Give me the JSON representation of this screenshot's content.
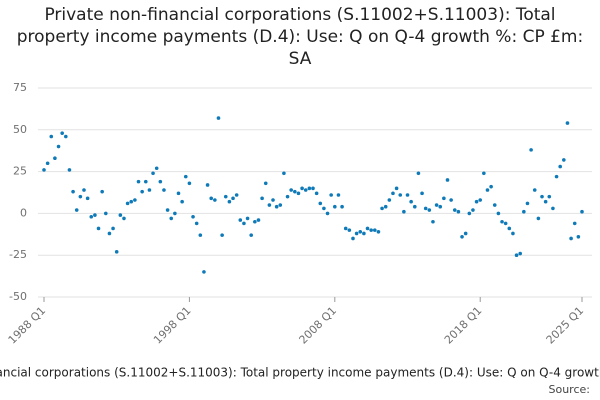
{
  "chart_data": {
    "type": "line",
    "title": "Private non-financial corporations (S.11002+S.11003): Total property income payments (D.4): Use: Q on Q-4 growth %: CP £m: SA",
    "source": "Source:",
    "categories": [
      "1988 Q1",
      null,
      null,
      null,
      null,
      null,
      null,
      null,
      null,
      null,
      null,
      null,
      null,
      null,
      null,
      null,
      null,
      null,
      null,
      null,
      null,
      null,
      null,
      null,
      null,
      null,
      null,
      null,
      null,
      null,
      null,
      null,
      null,
      null,
      null,
      null,
      null,
      null,
      null,
      null,
      "1998 Q1",
      null,
      null,
      null,
      null,
      null,
      null,
      null,
      null,
      null,
      null,
      null,
      null,
      null,
      null,
      null,
      null,
      null,
      null,
      null,
      null,
      null,
      null,
      null,
      null,
      null,
      null,
      null,
      null,
      null,
      null,
      null,
      null,
      null,
      null,
      null,
      null,
      null,
      null,
      null,
      "2008 Q1",
      null,
      null,
      null,
      null,
      null,
      null,
      null,
      null,
      null,
      null,
      null,
      null,
      null,
      null,
      null,
      null,
      null,
      null,
      null,
      null,
      null,
      null,
      null,
      null,
      null,
      null,
      null,
      null,
      null,
      null,
      null,
      null,
      null,
      null,
      null,
      null,
      null,
      null,
      null,
      "2018 Q1",
      null,
      null,
      null,
      null,
      null,
      null,
      null,
      null,
      null,
      null,
      null,
      null,
      null,
      null,
      null,
      null,
      null,
      null,
      null,
      null,
      null,
      null,
      null,
      null,
      null,
      null,
      null,
      "2025 Q1"
    ],
    "series": [
      {
        "name": "Private non-financial corporations (S.11002+S.11003): Total property income payments (D.4): Use: Q on Q-4 growth %: CP £m: SA",
        "color": "#0f7ab8",
        "values": [
          26,
          30,
          46,
          33,
          40,
          48,
          46,
          26,
          13,
          2,
          10,
          14,
          9,
          -2,
          -1,
          -9,
          13,
          0,
          -12,
          -9,
          -23,
          -1,
          -3,
          6,
          7,
          8,
          19,
          13,
          19,
          14,
          24,
          27,
          19,
          14,
          2,
          -3,
          0,
          12,
          7,
          22,
          18,
          -2,
          -6,
          -13,
          -35,
          17,
          9,
          8,
          57,
          -13,
          10,
          7,
          9,
          11,
          -4,
          -6,
          -3,
          -13,
          -5,
          -4,
          9,
          18,
          5,
          8,
          4,
          5,
          24,
          10,
          14,
          13,
          12,
          15,
          14,
          15,
          15,
          12,
          6,
          3,
          0,
          11,
          4,
          11,
          4,
          -9,
          -10,
          -15,
          -12,
          -11,
          -12,
          -9,
          -10,
          -10,
          -11,
          3,
          4,
          8,
          12,
          15,
          11,
          1,
          11,
          7,
          4,
          24,
          12,
          3,
          2,
          -5,
          5,
          4,
          9,
          20,
          8,
          2,
          1,
          -14,
          -12,
          0,
          2,
          7,
          8,
          24,
          14,
          16,
          5,
          0,
          -5,
          -6,
          -9,
          -12,
          -25,
          -24,
          1,
          6,
          38,
          14,
          -3,
          10,
          7,
          10,
          3,
          22,
          28,
          32,
          54,
          -15,
          -6,
          -14,
          1
        ]
      }
    ],
    "ylim": [
      -50,
      75
    ],
    "yticks": [
      -50,
      -25,
      0,
      25,
      50,
      75
    ],
    "grid": true
  }
}
